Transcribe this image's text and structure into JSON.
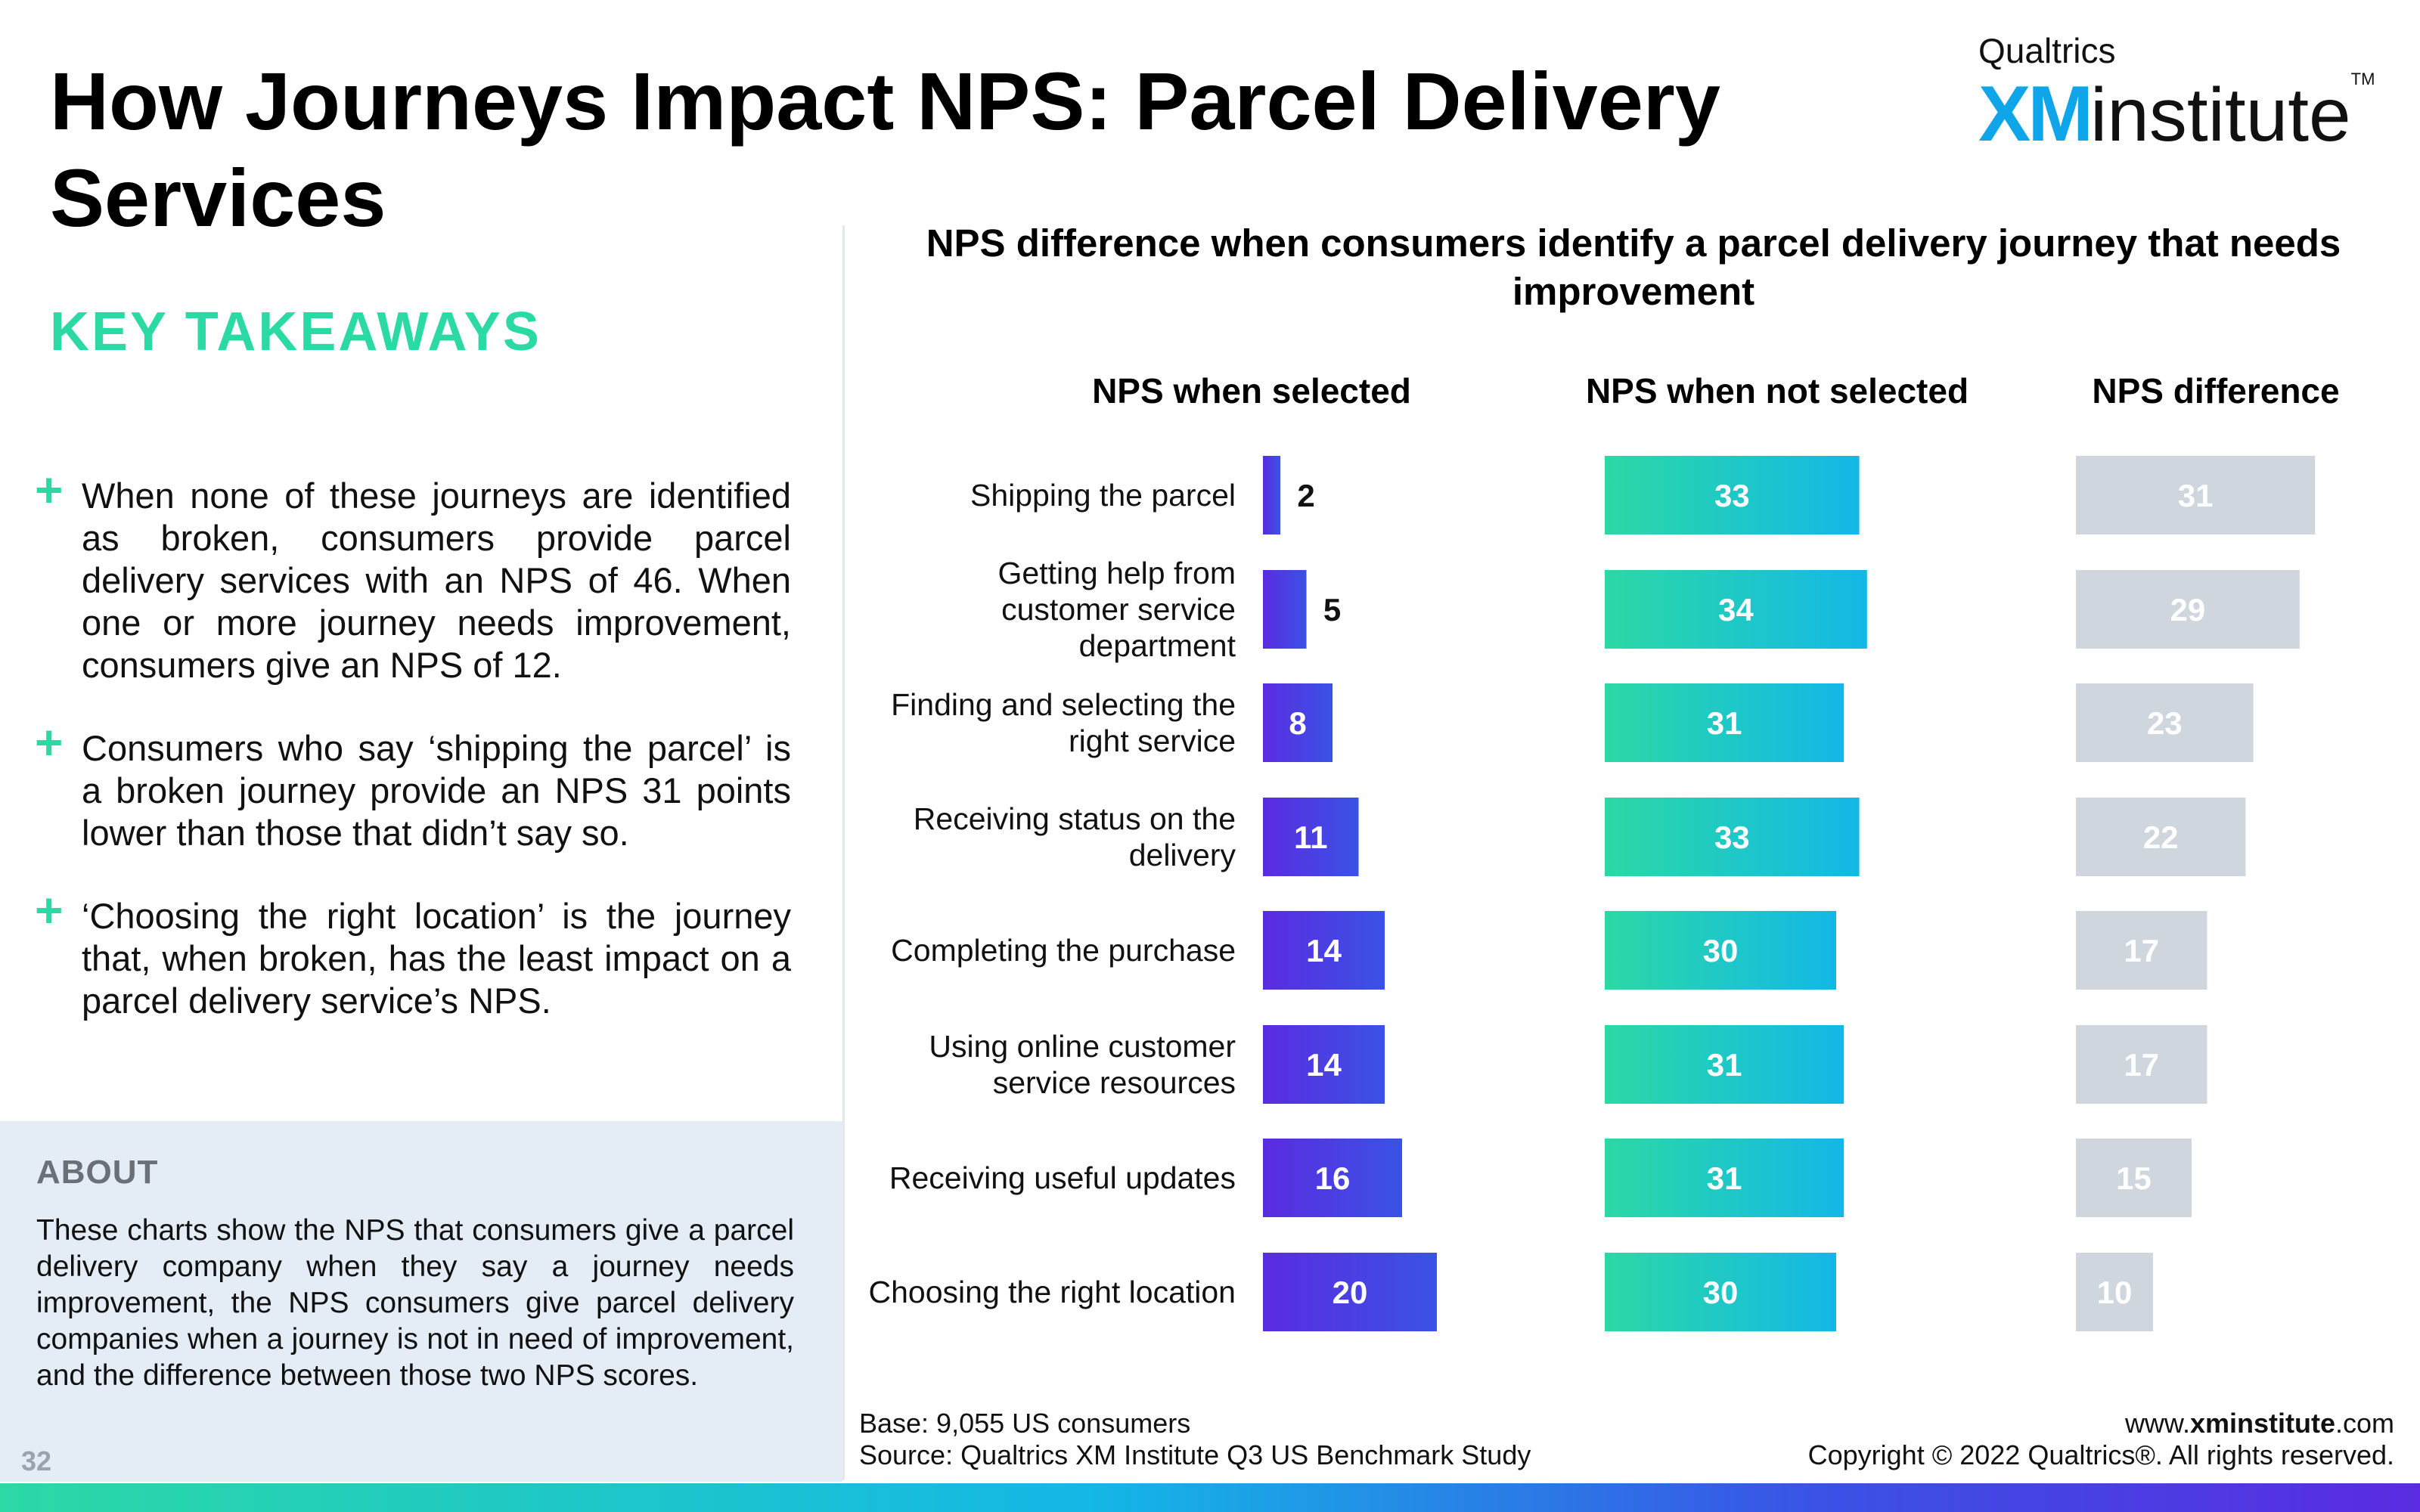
{
  "page": {
    "title": "How Journeys Impact NPS: Parcel Delivery Services",
    "number": "32"
  },
  "brand": {
    "top": "Qualtrics",
    "xm": "XM",
    "institute": "institute",
    "tm": "TM"
  },
  "takeaways": {
    "heading": "KEY TAKEAWAYS",
    "items": [
      "When none of these journeys are identified as broken, consumers provide parcel delivery services with an NPS of 46. When one or more journey needs improvement, consumers give an NPS of 12.",
      "Consumers who say ‘shipping the parcel’ is a broken journey provide an NPS 31 points lower than those that didn’t say so.",
      "‘Choosing the right location’ is the journey that, when broken, has the least impact on a parcel delivery service’s NPS."
    ]
  },
  "about": {
    "heading": "ABOUT",
    "text": "These charts show the NPS that consumers give a parcel delivery company when they say a journey needs improvement, the NPS consumers give parcel delivery companies when a journey is not in need of improvement, and the difference between those two NPS scores."
  },
  "footer": {
    "base": "Base: 9,055 US consumers",
    "source": "Source: Qualtrics XM Institute Q3 US Benchmark Study",
    "url_prefix": "www.",
    "url_bold": "xminstitute",
    "url_suffix": ".com",
    "copyright": "Copyright © 2022 Qualtrics®. All rights reserved."
  },
  "chart_data": {
    "type": "bar",
    "orientation": "horizontal",
    "title": "NPS difference when consumers identify a parcel delivery journey that needs improvement",
    "categories": [
      "Shipping the parcel",
      "Getting help from customer service department",
      "Finding and selecting the right service",
      "Receiving status on the delivery",
      "Completing the purchase",
      "Using online customer service resources",
      "Receiving useful updates",
      "Choosing the right location"
    ],
    "category_lines": [
      [
        "Shipping the parcel"
      ],
      [
        "Getting help from",
        "customer service",
        "department"
      ],
      [
        "Finding and selecting the",
        "right service"
      ],
      [
        "Receiving status on the",
        "delivery"
      ],
      [
        "Completing the purchase"
      ],
      [
        "Using online customer",
        "service resources"
      ],
      [
        "Receiving useful updates"
      ],
      [
        "Choosing the right location"
      ]
    ],
    "series": [
      {
        "name": "NPS when selected",
        "values": [
          2,
          5,
          8,
          11,
          14,
          14,
          16,
          20
        ],
        "color_start": "#5b2be0",
        "color_end": "#3a52e6"
      },
      {
        "name": "NPS when not selected",
        "values": [
          33,
          34,
          31,
          33,
          30,
          31,
          31,
          30
        ],
        "color_start": "#2bd9a5",
        "color_end": "#13b8e6"
      },
      {
        "name": "NPS difference",
        "values": [
          31,
          29,
          23,
          22,
          17,
          17,
          15,
          10
        ],
        "color_start": "#cfd6dd",
        "color_end": "#cfd6dd"
      }
    ],
    "label_color_inside": "#ffffff",
    "label_color_outside": "#111111"
  }
}
